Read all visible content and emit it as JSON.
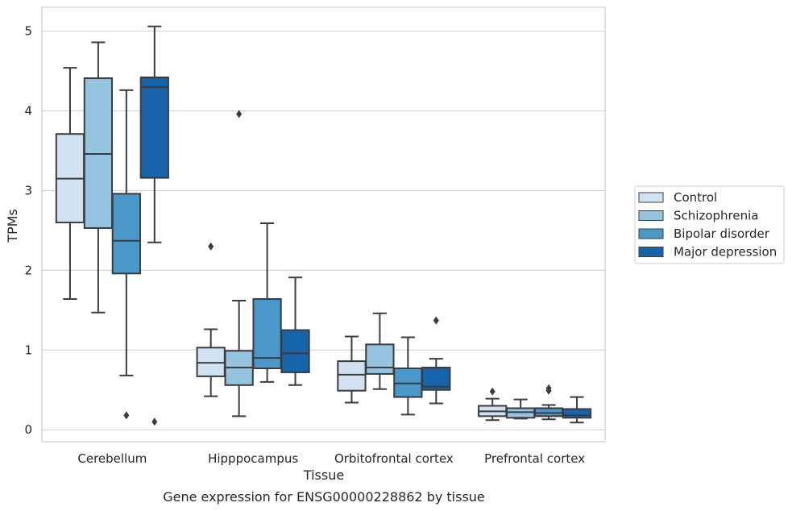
{
  "chart_data": {
    "type": "box",
    "title": "Gene expression for ENSG00000228862 by tissue",
    "xlabel": "Tissue",
    "ylabel": "TPMs",
    "ylim": [
      -0.15,
      5.3
    ],
    "yticks": [
      0,
      1,
      2,
      3,
      4,
      5
    ],
    "grid": "horizontal",
    "legend_position": "right",
    "categories": [
      "Cerebellum",
      "Hipppocampus",
      "Orbitofrontal cortex",
      "Prefrontal cortex"
    ],
    "series": [
      {
        "name": "Control",
        "color": "#d0e1f2",
        "boxes": [
          {
            "whislo": 1.64,
            "q1": 2.6,
            "med": 3.15,
            "q3": 3.71,
            "whishi": 4.54,
            "fliers": []
          },
          {
            "whislo": 0.42,
            "q1": 0.67,
            "med": 0.84,
            "q3": 1.03,
            "whishi": 1.26,
            "fliers": [
              2.3
            ]
          },
          {
            "whislo": 0.34,
            "q1": 0.49,
            "med": 0.69,
            "q3": 0.86,
            "whishi": 1.17,
            "fliers": []
          },
          {
            "whislo": 0.12,
            "q1": 0.17,
            "med": 0.23,
            "q3": 0.3,
            "whishi": 0.39,
            "fliers": [
              0.48
            ]
          }
        ]
      },
      {
        "name": "Schizophrenia",
        "color": "#94c4df",
        "boxes": [
          {
            "whislo": 1.47,
            "q1": 2.53,
            "med": 3.46,
            "q3": 4.41,
            "whishi": 4.86,
            "fliers": []
          },
          {
            "whislo": 0.17,
            "q1": 0.56,
            "med": 0.78,
            "q3": 0.99,
            "whishi": 1.62,
            "fliers": [
              3.96
            ]
          },
          {
            "whislo": 0.51,
            "q1": 0.7,
            "med": 0.78,
            "q3": 1.07,
            "whishi": 1.46,
            "fliers": []
          },
          {
            "whislo": 0.14,
            "q1": 0.15,
            "med": 0.22,
            "q3": 0.27,
            "whishi": 0.38,
            "fliers": []
          }
        ]
      },
      {
        "name": "Bipolar disorder",
        "color": "#4a98c9",
        "boxes": [
          {
            "whislo": 0.68,
            "q1": 1.96,
            "med": 2.37,
            "q3": 2.96,
            "whishi": 4.26,
            "fliers": [
              0.18
            ]
          },
          {
            "whislo": 0.6,
            "q1": 0.77,
            "med": 0.9,
            "q3": 1.64,
            "whishi": 2.59,
            "fliers": []
          },
          {
            "whislo": 0.19,
            "q1": 0.41,
            "med": 0.58,
            "q3": 0.77,
            "whishi": 1.16,
            "fliers": []
          },
          {
            "whislo": 0.13,
            "q1": 0.17,
            "med": 0.21,
            "q3": 0.27,
            "whishi": 0.31,
            "fliers": [
              0.49,
              0.52
            ]
          }
        ]
      },
      {
        "name": "Major depression",
        "color": "#1764ab",
        "boxes": [
          {
            "whislo": 2.35,
            "q1": 3.16,
            "med": 4.3,
            "q3": 4.42,
            "whishi": 5.06,
            "fliers": [
              0.1
            ]
          },
          {
            "whislo": 0.56,
            "q1": 0.72,
            "med": 0.96,
            "q3": 1.25,
            "whishi": 1.91,
            "fliers": []
          },
          {
            "whislo": 0.33,
            "q1": 0.5,
            "med": 0.54,
            "q3": 0.78,
            "whishi": 0.89,
            "fliers": [
              1.37
            ]
          },
          {
            "whislo": 0.09,
            "q1": 0.15,
            "med": 0.18,
            "q3": 0.26,
            "whishi": 0.41,
            "fliers": []
          }
        ]
      }
    ]
  }
}
